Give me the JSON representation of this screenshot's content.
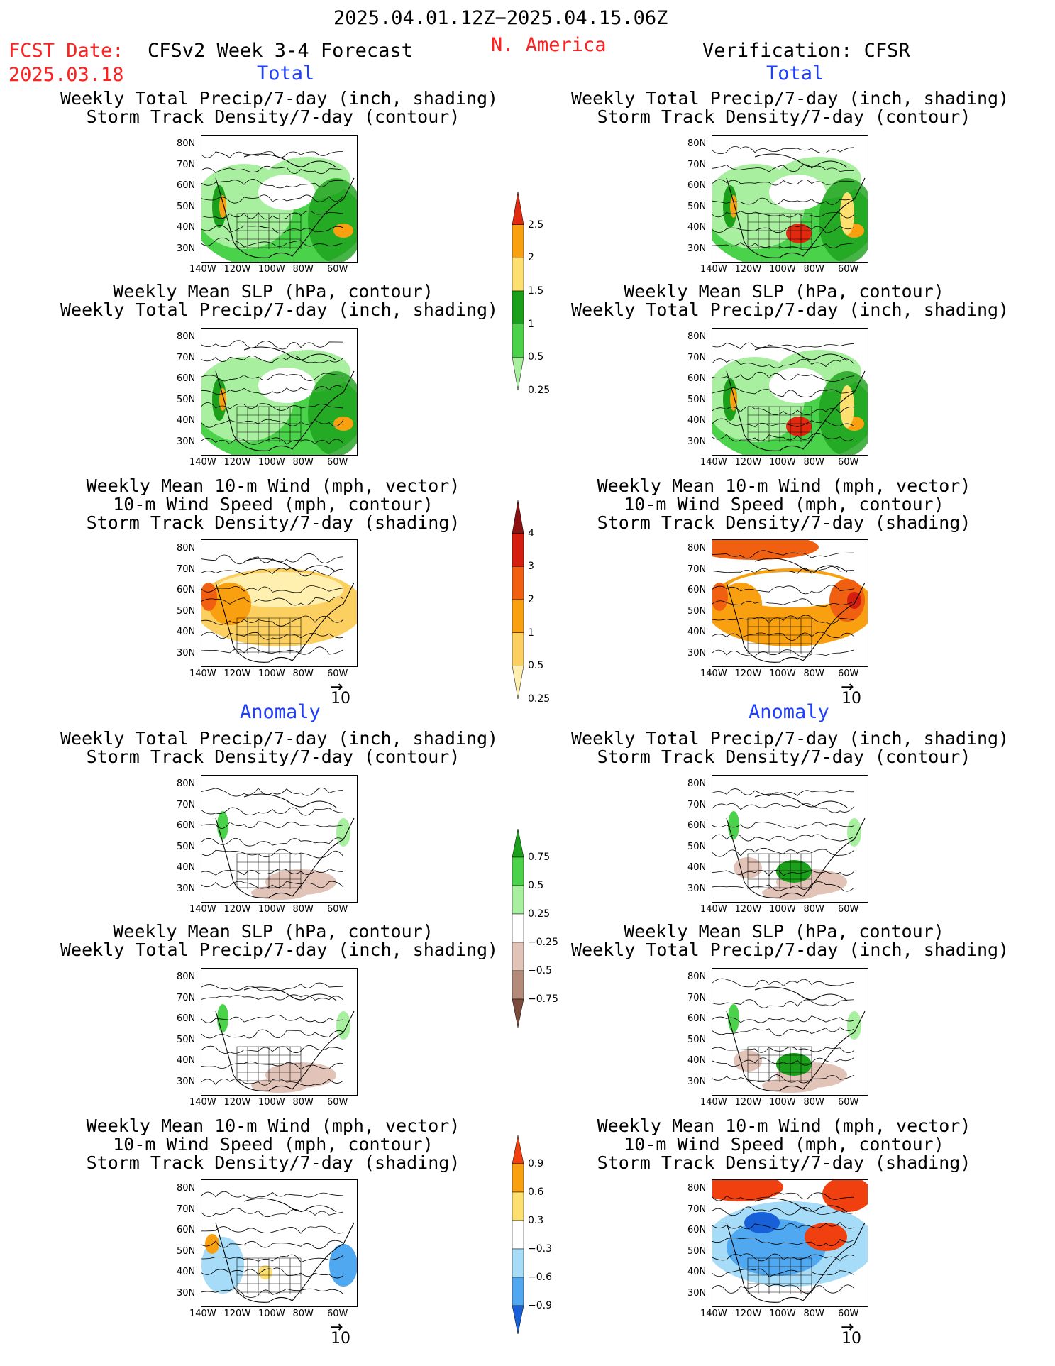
{
  "header": {
    "date_range": "2025.04.01.12Z−2025.04.15.06Z",
    "fcst_label": "FCST Date:",
    "fcst_date": "2025.03.18",
    "model": "CFSv2 Week 3-4 Forecast",
    "region": "N. America",
    "verification": "Verification: CFSR"
  },
  "sections": {
    "total": "Total",
    "anomaly": "Anomaly"
  },
  "titles": {
    "precip": [
      "Weekly Total Precip/7-day (inch, shading)",
      "Storm Track Density/7-day (contour)"
    ],
    "slp": [
      "Weekly Mean SLP (hPa, contour)",
      "Weekly Total Precip/7-day (inch, shading)"
    ],
    "wind": [
      "Weekly Mean 10-m Wind (mph, vector)",
      "10-m Wind Speed (mph, contour)",
      "Storm Track Density/7-day (shading)"
    ]
  },
  "axes": {
    "lat": [
      "80N",
      "70N",
      "60N",
      "50N",
      "40N",
      "30N"
    ],
    "lon": [
      "140W",
      "120W",
      "100W",
      "80W",
      "60W"
    ]
  },
  "vector_ref": "10",
  "colorbars": [
    {
      "id": "precip_total",
      "labels": [
        "2.5",
        "2",
        "1.5",
        "1",
        "0.5",
        "0.25"
      ],
      "colors": [
        "#e02a10",
        "#f9a010",
        "#fde070",
        "#1aa01a",
        "#4ad24a",
        "#a8f0a0"
      ]
    },
    {
      "id": "storm_total",
      "labels": [
        "4",
        "3",
        "2",
        "1",
        "0.5",
        "0.25"
      ],
      "colors": [
        "#8b1010",
        "#d41f10",
        "#f06010",
        "#f9a010",
        "#fcd060",
        "#fff0b0"
      ]
    },
    {
      "id": "precip_anom",
      "labels": [
        "0.75",
        "0.5",
        "0.25",
        "−0.25",
        "−0.5",
        "−0.75"
      ],
      "colors": [
        "#1aa01a",
        "#4ad24a",
        "#a8f0a0",
        "#ffffff",
        "#e2c3b8",
        "#b48b78",
        "#7a4a3a"
      ]
    },
    {
      "id": "storm_anom",
      "labels": [
        "0.9",
        "0.6",
        "0.3",
        "−0.3",
        "−0.6",
        "−0.9"
      ],
      "colors": [
        "#f04010",
        "#f9a010",
        "#fde070",
        "#ffffff",
        "#a6dcf8",
        "#50a8f0",
        "#1860d8"
      ]
    }
  ],
  "panels": [
    {
      "id": "fc-total-precip",
      "title": "precip",
      "bg": "precip_total"
    },
    {
      "id": "ob-total-precip",
      "title": "precip",
      "bg": "precip_total_obs"
    },
    {
      "id": "fc-total-slp",
      "title": "slp",
      "bg": "precip_total"
    },
    {
      "id": "ob-total-slp",
      "title": "slp",
      "bg": "precip_total_obs"
    },
    {
      "id": "fc-total-wind",
      "title": "wind",
      "bg": "storm_total"
    },
    {
      "id": "ob-total-wind",
      "title": "wind",
      "bg": "storm_total_obs"
    },
    {
      "id": "fc-anom-precip",
      "title": "precip",
      "bg": "precip_anom"
    },
    {
      "id": "ob-anom-precip",
      "title": "precip",
      "bg": "precip_anom_obs"
    },
    {
      "id": "fc-anom-slp",
      "title": "slp",
      "bg": "precip_anom"
    },
    {
      "id": "ob-anom-slp",
      "title": "slp",
      "bg": "precip_anom_obs"
    },
    {
      "id": "fc-anom-wind",
      "title": "wind",
      "bg": "storm_anom"
    },
    {
      "id": "ob-anom-wind",
      "title": "wind",
      "bg": "storm_anom_obs"
    }
  ]
}
